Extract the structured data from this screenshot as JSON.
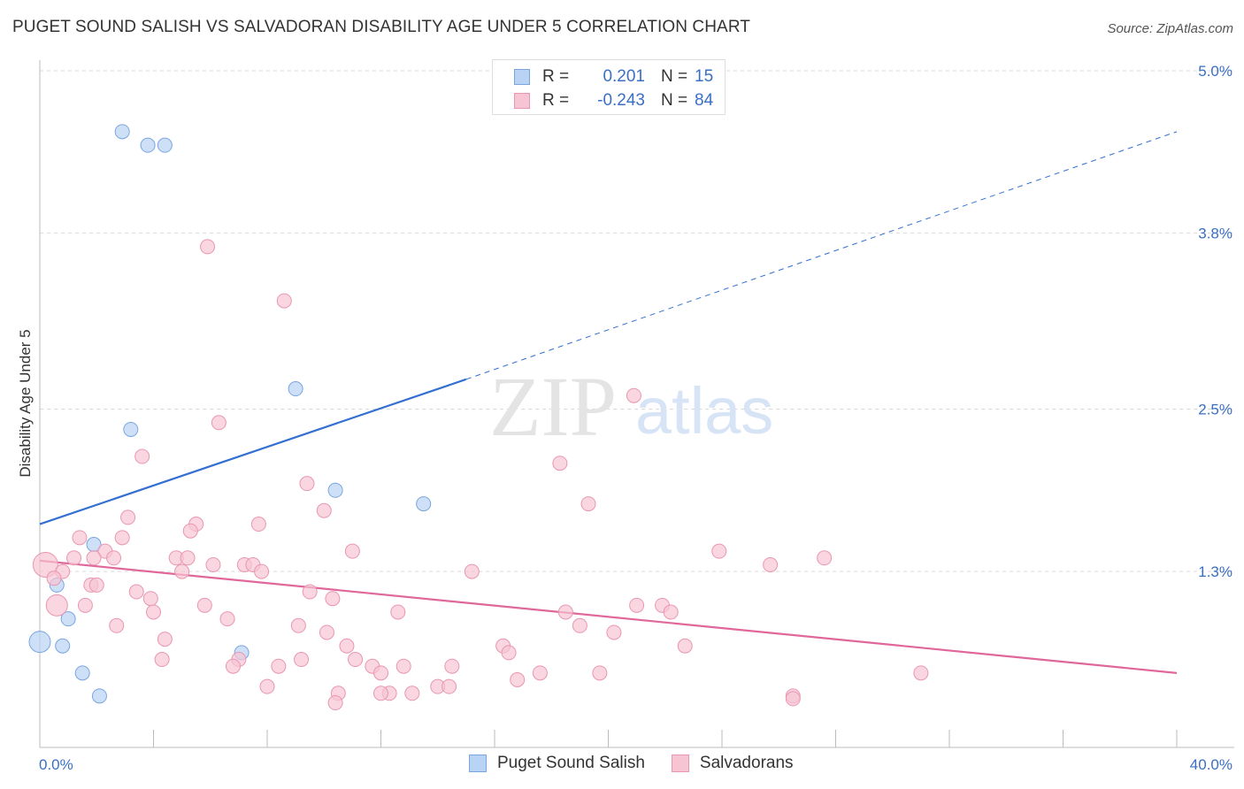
{
  "title": "PUGET SOUND SALISH VS SALVADORAN DISABILITY AGE UNDER 5 CORRELATION CHART",
  "source": "Source: ZipAtlas.com",
  "watermark": {
    "zip": "ZIP",
    "atlas": "atlas"
  },
  "legend": {
    "rows": [
      {
        "r_label": "R =",
        "r_value": "0.201",
        "n_label": "N =",
        "n_value": "15"
      },
      {
        "r_label": "R =",
        "r_value": "-0.243",
        "n_label": "N =",
        "n_value": "84"
      }
    ]
  },
  "bottom_legend": [
    "Puget Sound Salish",
    "Salvadorans"
  ],
  "colors": {
    "blue_fill": "#b8d3f4",
    "blue_stroke": "#7aa5de",
    "blue_line": "#3370d1",
    "pink_fill": "#f7c4d3",
    "pink_stroke": "#e996b2",
    "pink_line": "#e0679a",
    "axis_text": "#3a6fc4",
    "grid": "#d9d9d9"
  },
  "chart_data": {
    "type": "scatter",
    "title": "PUGET SOUND SALISH VS SALVADORAN DISABILITY AGE UNDER 5 CORRELATION CHART",
    "xlabel": "",
    "ylabel": "Disability Age Under 5",
    "xlim": [
      0,
      40
    ],
    "ylim": [
      0,
      5.0
    ],
    "x_tick_labels": [
      "0.0%",
      "40.0%"
    ],
    "y_ticks": [
      1.3,
      2.5,
      3.8,
      5.0
    ],
    "y_tick_labels": [
      "1.3%",
      "2.5%",
      "3.8%",
      "5.0%"
    ],
    "grid": true,
    "legend_position": "top-center",
    "series": [
      {
        "name": "Puget Sound Salish",
        "color": "#b8d3f4",
        "points": [
          [
            2.9,
            4.55
          ],
          [
            3.8,
            4.45
          ],
          [
            4.4,
            4.45
          ],
          [
            9.0,
            2.65
          ],
          [
            3.2,
            2.35
          ],
          [
            10.4,
            1.9
          ],
          [
            13.5,
            1.8
          ],
          [
            1.9,
            1.5
          ],
          [
            0.6,
            1.2
          ],
          [
            1.0,
            0.95
          ],
          [
            0.8,
            0.75
          ],
          [
            0.0,
            0.78
          ],
          [
            1.5,
            0.55
          ],
          [
            7.1,
            0.7
          ],
          [
            2.1,
            0.38
          ]
        ],
        "trend": {
          "x": [
            0,
            15
          ],
          "y": [
            1.65,
            2.72
          ],
          "extended_x": [
            15,
            40
          ],
          "extended_y": [
            2.72,
            4.55
          ]
        }
      },
      {
        "name": "Salvadorans",
        "color": "#f7c4d3",
        "points": [
          [
            5.9,
            3.7
          ],
          [
            8.6,
            3.3
          ],
          [
            20.9,
            2.6
          ],
          [
            6.3,
            2.4
          ],
          [
            3.6,
            2.15
          ],
          [
            18.3,
            2.1
          ],
          [
            9.4,
            1.95
          ],
          [
            19.3,
            1.8
          ],
          [
            10.0,
            1.75
          ],
          [
            3.1,
            1.7
          ],
          [
            7.7,
            1.65
          ],
          [
            5.5,
            1.65
          ],
          [
            1.4,
            1.55
          ],
          [
            2.9,
            1.55
          ],
          [
            5.3,
            1.6
          ],
          [
            11.0,
            1.45
          ],
          [
            2.3,
            1.45
          ],
          [
            2.6,
            1.4
          ],
          [
            1.9,
            1.4
          ],
          [
            1.2,
            1.4
          ],
          [
            4.8,
            1.4
          ],
          [
            5.2,
            1.4
          ],
          [
            7.2,
            1.35
          ],
          [
            7.5,
            1.35
          ],
          [
            6.1,
            1.35
          ],
          [
            0.2,
            1.35
          ],
          [
            23.9,
            1.45
          ],
          [
            25.7,
            1.35
          ],
          [
            27.6,
            1.4
          ],
          [
            15.2,
            1.3
          ],
          [
            5.0,
            1.3
          ],
          [
            7.8,
            1.3
          ],
          [
            0.8,
            1.3
          ],
          [
            0.5,
            1.25
          ],
          [
            1.8,
            1.2
          ],
          [
            2.0,
            1.2
          ],
          [
            3.4,
            1.15
          ],
          [
            9.5,
            1.15
          ],
          [
            10.3,
            1.1
          ],
          [
            3.9,
            1.1
          ],
          [
            5.8,
            1.05
          ],
          [
            0.6,
            1.05
          ],
          [
            1.6,
            1.05
          ],
          [
            4.0,
            1.0
          ],
          [
            12.6,
            1.0
          ],
          [
            18.5,
            1.0
          ],
          [
            21.0,
            1.05
          ],
          [
            21.9,
            1.05
          ],
          [
            22.2,
            1.0
          ],
          [
            6.6,
            0.95
          ],
          [
            2.7,
            0.9
          ],
          [
            9.1,
            0.9
          ],
          [
            19.0,
            0.9
          ],
          [
            10.1,
            0.85
          ],
          [
            20.2,
            0.85
          ],
          [
            4.4,
            0.8
          ],
          [
            16.3,
            0.75
          ],
          [
            22.7,
            0.75
          ],
          [
            10.8,
            0.75
          ],
          [
            16.5,
            0.7
          ],
          [
            4.3,
            0.65
          ],
          [
            7.0,
            0.65
          ],
          [
            9.2,
            0.65
          ],
          [
            11.1,
            0.65
          ],
          [
            14.5,
            0.6
          ],
          [
            11.7,
            0.6
          ],
          [
            6.8,
            0.6
          ],
          [
            8.4,
            0.6
          ],
          [
            12.0,
            0.55
          ],
          [
            12.8,
            0.6
          ],
          [
            17.6,
            0.55
          ],
          [
            19.7,
            0.55
          ],
          [
            31.0,
            0.55
          ],
          [
            16.8,
            0.5
          ],
          [
            8.0,
            0.45
          ],
          [
            14.0,
            0.45
          ],
          [
            14.4,
            0.45
          ],
          [
            12.3,
            0.4
          ],
          [
            13.1,
            0.4
          ],
          [
            10.5,
            0.4
          ],
          [
            12.0,
            0.4
          ],
          [
            26.5,
            0.38
          ],
          [
            26.5,
            0.36
          ],
          [
            10.4,
            0.33
          ]
        ],
        "trend": {
          "x": [
            0,
            40
          ],
          "y": [
            1.38,
            0.55
          ]
        }
      }
    ]
  }
}
